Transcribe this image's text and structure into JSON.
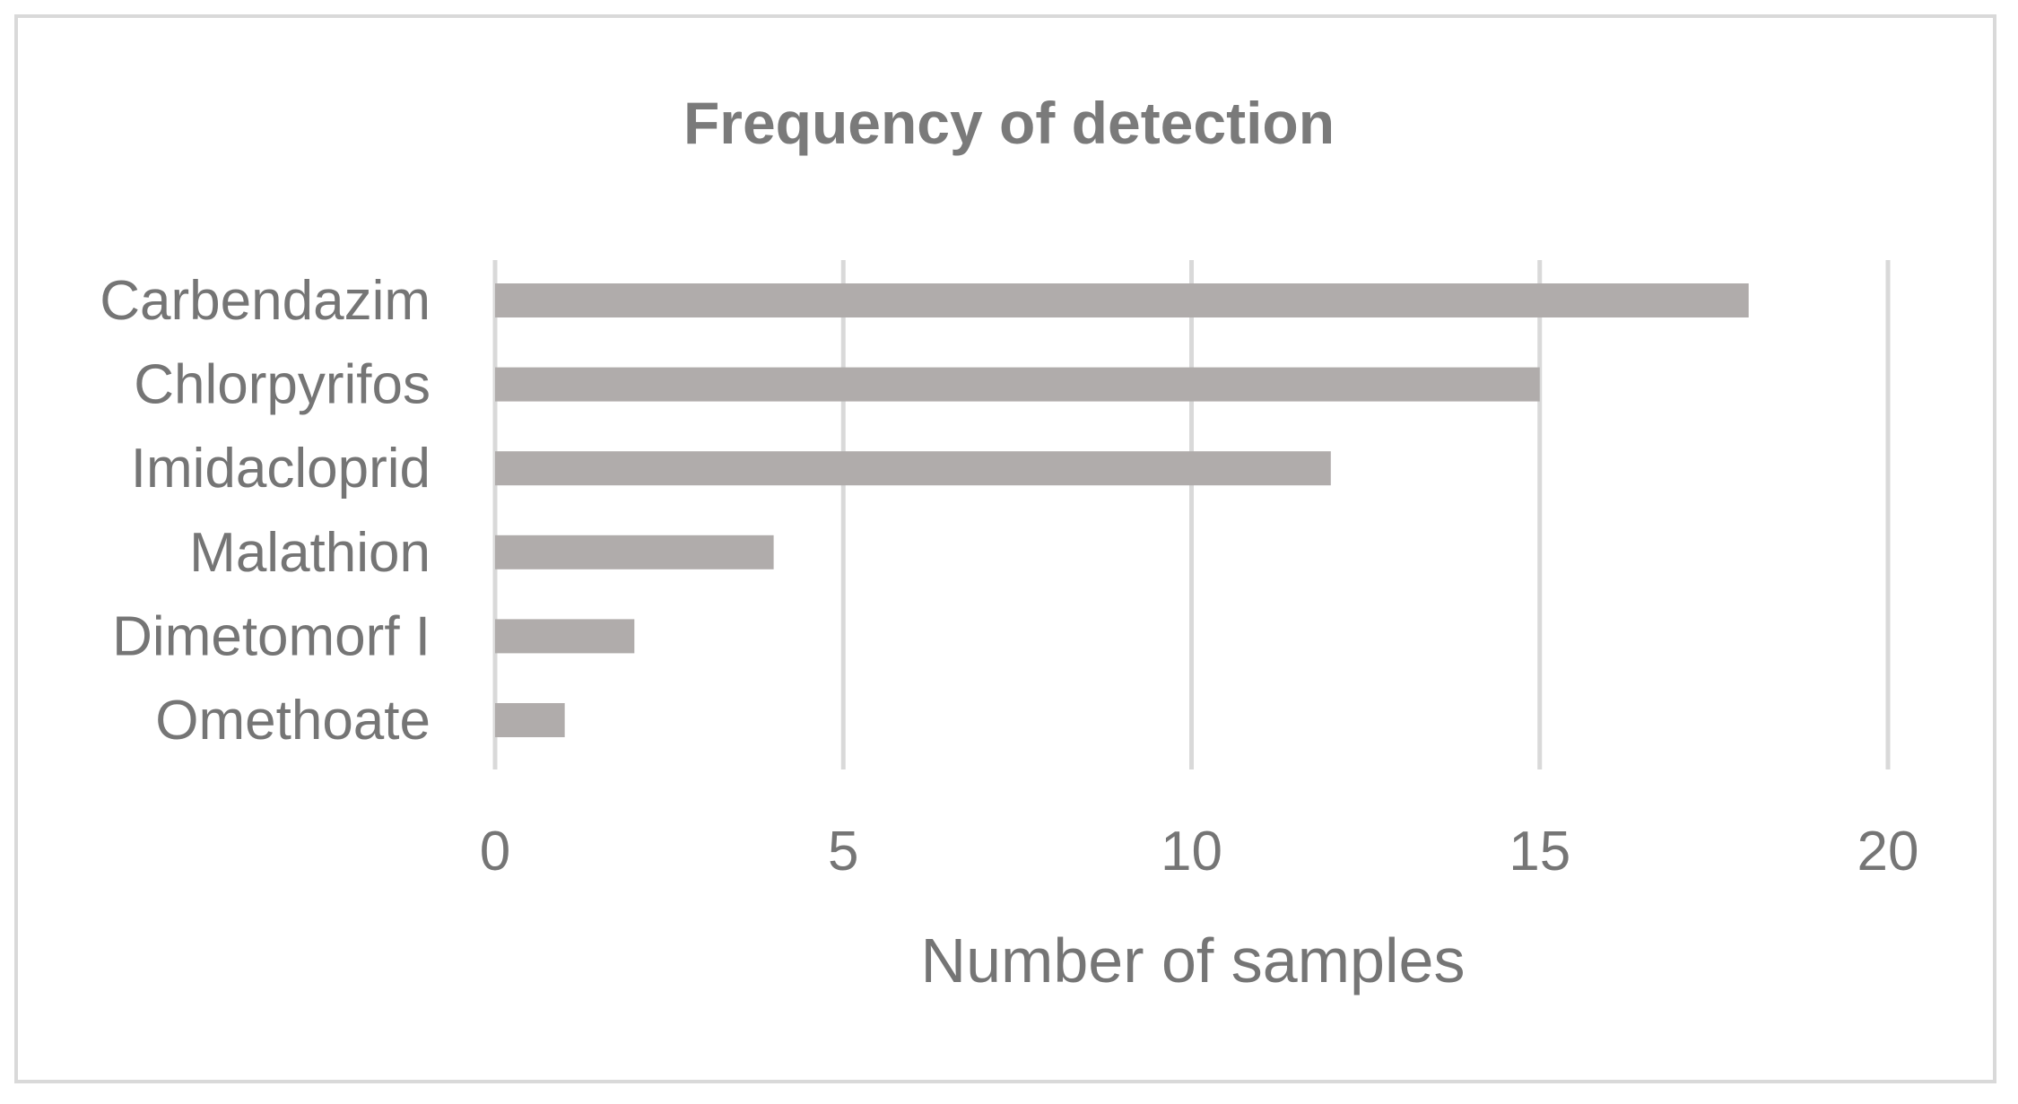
{
  "chart_data": {
    "type": "bar",
    "orientation": "horizontal",
    "title": "Frequency of detection",
    "xlabel": "Number of samples",
    "ylabel": "",
    "categories": [
      "Carbendazim",
      "Chlorpyrifos",
      "Imidacloprid",
      "Malathion",
      "Dimetomorf I",
      "Omethoate"
    ],
    "values": [
      18,
      15,
      12,
      4,
      2,
      1
    ],
    "xlim": [
      0,
      20
    ],
    "xticks": [
      0,
      5,
      10,
      15,
      20
    ],
    "grid": "vertical",
    "legend": "none",
    "colors": {
      "bar": "#b0acab",
      "grid": "#d9d9d9",
      "text": "#757575",
      "title": "#7a7a7a",
      "frame": "#d9d9d9"
    }
  }
}
